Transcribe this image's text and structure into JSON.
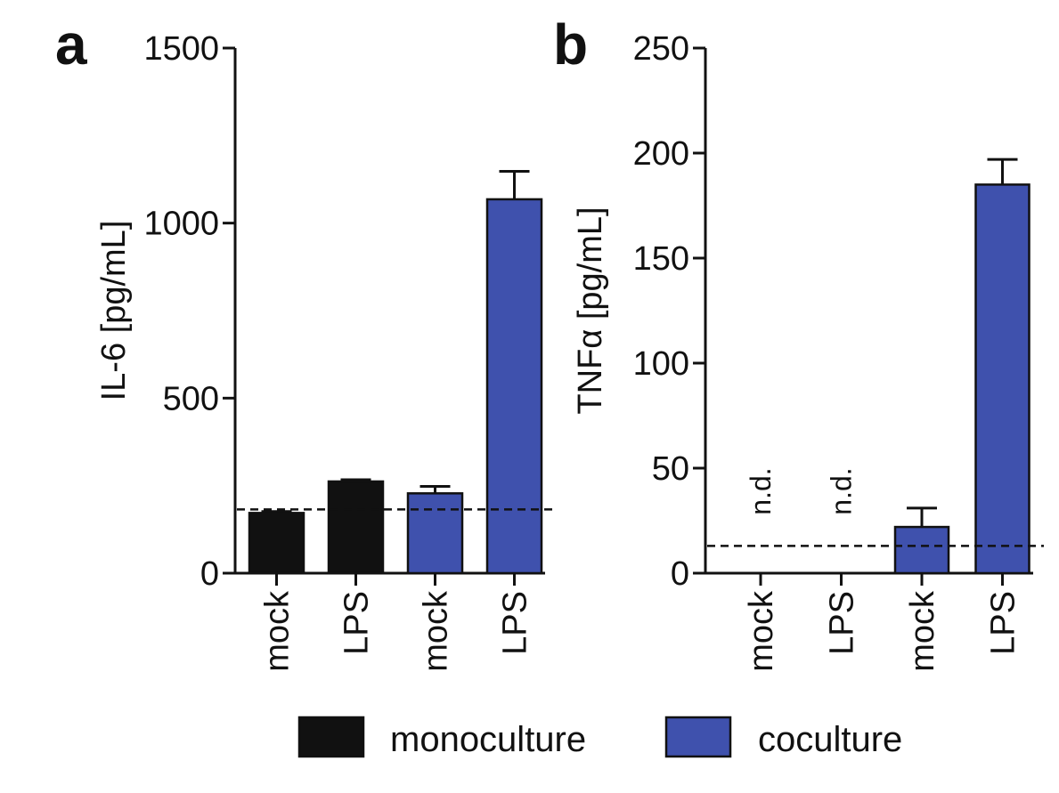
{
  "colors": {
    "monoculture": "#111111",
    "coculture": "#3f51ad",
    "axis": "#111111"
  },
  "legend": {
    "items": [
      {
        "label": "monoculture",
        "color": "#111111"
      },
      {
        "label": "coculture",
        "color": "#3f51ad"
      }
    ]
  },
  "chart_data": [
    {
      "type": "bar",
      "panel": "a",
      "title": "",
      "ylabel": "IL-6 [pg/mL]",
      "ylim": [
        0,
        1500
      ],
      "yticks": [
        0,
        500,
        1000,
        1500
      ],
      "categories": [
        "mock",
        "LPS",
        "mock",
        "LPS"
      ],
      "groups": [
        "monoculture",
        "monoculture",
        "coculture",
        "coculture"
      ],
      "values": [
        172,
        262,
        228,
        1068
      ],
      "errors": [
        4,
        5,
        20,
        80
      ],
      "annotations": [
        "",
        "",
        "",
        ""
      ],
      "detection_limit": 182
    },
    {
      "type": "bar",
      "panel": "b",
      "title": "",
      "ylabel": "TNFα [pg/mL]",
      "ylim": [
        0,
        250
      ],
      "yticks": [
        0,
        50,
        100,
        150,
        200,
        250
      ],
      "categories": [
        "mock",
        "LPS",
        "mock",
        "LPS"
      ],
      "groups": [
        "monoculture",
        "monoculture",
        "coculture",
        "coculture"
      ],
      "values": [
        null,
        null,
        22,
        185
      ],
      "errors": [
        0,
        0,
        9,
        12
      ],
      "annotations": [
        "n.d.",
        "n.d.",
        "",
        ""
      ],
      "detection_limit": 13
    }
  ]
}
